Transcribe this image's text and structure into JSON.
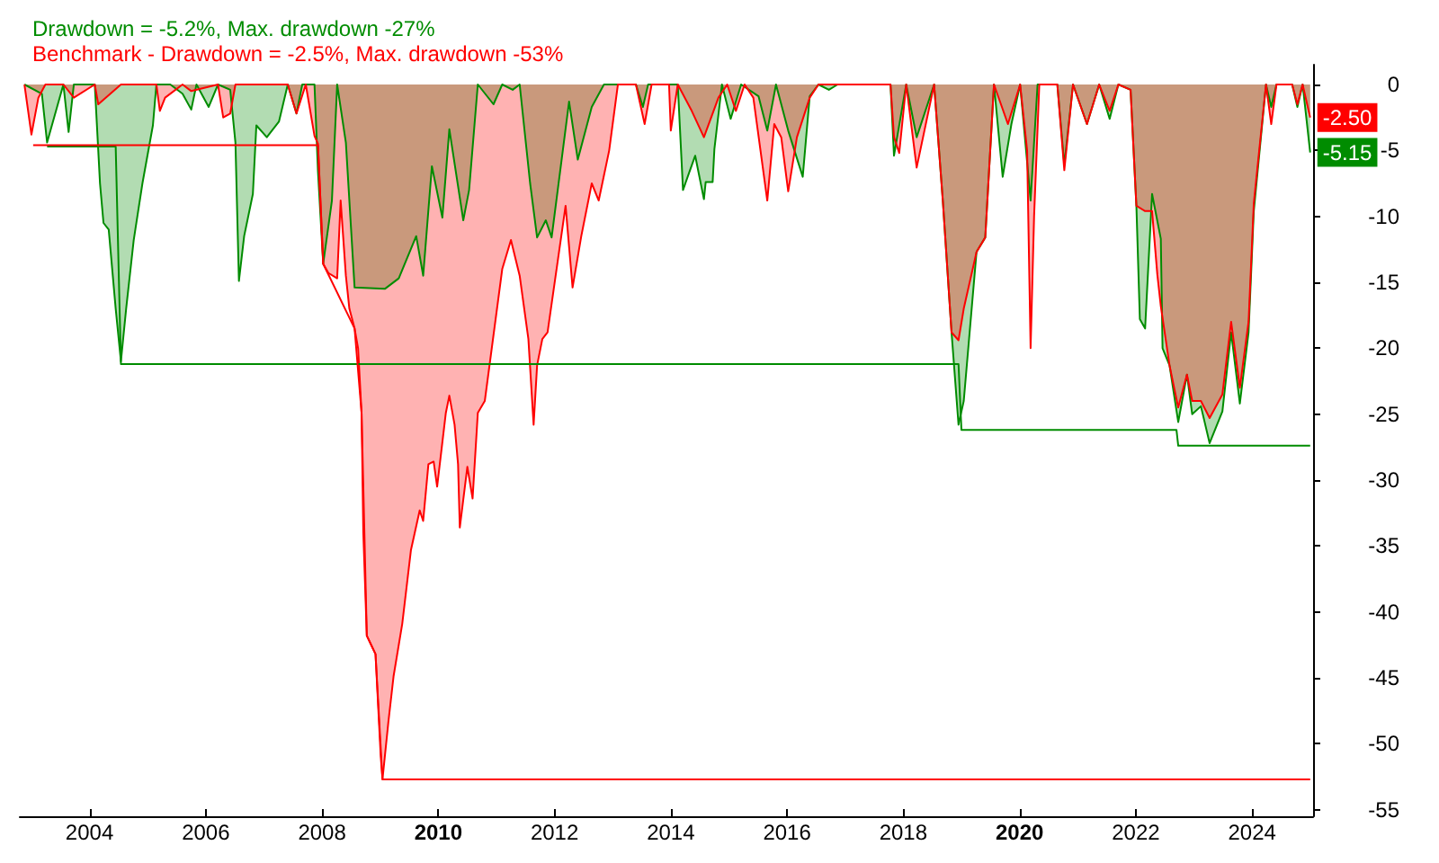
{
  "chart_data": {
    "type": "area",
    "legend": "top left",
    "grid": false,
    "marker": "none",
    "line_style": "solid",
    "xlim": [
      2002.8,
      2025.05
    ],
    "xticks": [
      2004,
      2006,
      2008,
      2010,
      2012,
      2014,
      2016,
      2018,
      2020,
      2022,
      2024
    ],
    "ylim": [
      -55.5,
      1.5
    ],
    "yticks": [
      0,
      -5,
      -10,
      -15,
      -20,
      -25,
      -30,
      -35,
      -40,
      -45,
      -50,
      -55
    ],
    "annotations": [
      {
        "text": "-2.50",
        "x": 2025.0,
        "y": -2.5
      },
      {
        "text": "-5.15",
        "x": 2025.0,
        "y": -5.15
      }
    ],
    "series": [
      {
        "name": "Drawdown = -5.2%, Max. drawdown -27%",
        "color": "#008c00",
        "x": [
          2002.88,
          2003.18,
          2003.27,
          2003.55,
          2003.64,
          2003.73,
          2004.09,
          2004.18,
          2004.24,
          2004.33,
          2004.45,
          2004.54,
          2004.63,
          2004.76,
          2004.91,
          2005.09,
          2005.15,
          2005.39,
          2005.6,
          2005.75,
          2005.84,
          2006.05,
          2006.21,
          2006.42,
          2006.51,
          2006.57,
          2006.66,
          2006.81,
          2006.87,
          2007.05,
          2007.26,
          2007.41,
          2007.56,
          2007.66,
          2007.87,
          2007.93,
          2008.02,
          2008.17,
          2008.26,
          2008.41,
          2008.56,
          2009.08,
          2009.32,
          2009.62,
          2009.74,
          2009.89,
          2010.07,
          2010.19,
          2010.43,
          2010.53,
          2010.68,
          2010.95,
          2011.1,
          2011.28,
          2011.4,
          2011.58,
          2011.7,
          2011.85,
          2011.95,
          2012.25,
          2012.4,
          2012.64,
          2012.85,
          2013.4,
          2013.52,
          2013.61,
          2014.12,
          2014.21,
          2014.42,
          2014.57,
          2014.6,
          2014.72,
          2014.75,
          2014.88,
          2015.03,
          2015.21,
          2015.51,
          2015.66,
          2015.81,
          2016.02,
          2016.27,
          2016.39,
          2016.54,
          2016.72,
          2016.87,
          2017.78,
          2017.84,
          2018.05,
          2018.23,
          2018.53,
          2018.68,
          2018.83,
          2018.95,
          2019.04,
          2019.26,
          2019.41,
          2019.56,
          2019.71,
          2019.86,
          2020.01,
          2020.19,
          2020.31,
          2020.65,
          2020.77,
          2020.92,
          2021.16,
          2021.37,
          2021.55,
          2021.7,
          2021.91,
          2022.01,
          2022.07,
          2022.16,
          2022.28,
          2022.43,
          2022.46,
          2022.58,
          2022.73,
          2022.88,
          2022.97,
          2023.12,
          2023.27,
          2023.49,
          2023.64,
          2023.79,
          2023.94,
          2024.03,
          2024.24,
          2024.33,
          2024.42,
          2024.69,
          2024.78,
          2024.87,
          2025.0
        ],
        "values": [
          0,
          -0.7,
          -4.4,
          0,
          -3.6,
          0,
          0,
          -7.5,
          -10.5,
          -11,
          -17,
          -21,
          -17,
          -11.8,
          -7.5,
          -3.1,
          0,
          0,
          -0.7,
          -1.9,
          0,
          -1.7,
          0,
          -0.4,
          -4.4,
          -14.9,
          -11.5,
          -8.3,
          -3.1,
          -4,
          -2.8,
          0,
          -2.2,
          0,
          0,
          -6.6,
          -13.6,
          -8.8,
          0,
          -4.4,
          -15.4,
          -15.5,
          -14.7,
          -11.5,
          -14.5,
          -6.2,
          -10.1,
          -3.4,
          -10.3,
          -8,
          0,
          -1.5,
          0,
          -0.4,
          0,
          -7.5,
          -11.6,
          -10.3,
          -11.6,
          -1.3,
          -5.7,
          -1.7,
          0,
          0,
          -1.7,
          0,
          0,
          -8,
          -5.4,
          -8.7,
          -7.4,
          -7.4,
          -4.9,
          0,
          -2.6,
          0,
          -0.9,
          -3.5,
          0,
          -3.5,
          -7,
          -0.9,
          0,
          -0.4,
          0,
          0,
          -5.4,
          0,
          -4,
          0,
          -8.8,
          -18.8,
          -25.8,
          -24,
          -12.7,
          -11.6,
          0,
          -7,
          -3,
          0,
          -8.8,
          0,
          0,
          -6.1,
          0,
          -3,
          0,
          -2.6,
          0,
          -0.4,
          -9.2,
          -17.8,
          -18.5,
          -8.3,
          -11.7,
          -20,
          -21.3,
          -25.6,
          -22,
          -25,
          -24.4,
          -27.2,
          -24.8,
          -18.8,
          -24.2,
          -18.8,
          -9.6,
          0,
          -1.7,
          0,
          0,
          -1.7,
          0,
          -5.15
        ]
      },
      {
        "name": "Benchmark - Drawdown = -2.5%, Max. drawdown -53%",
        "color": "#ff0000",
        "x": [
          2002.88,
          2003.0,
          2003.12,
          2003.24,
          2003.55,
          2003.73,
          2004.09,
          2004.15,
          2004.54,
          2005.15,
          2005.21,
          2005.3,
          2005.6,
          2005.75,
          2006.21,
          2006.3,
          2006.42,
          2006.51,
          2007.41,
          2007.56,
          2007.72,
          2007.87,
          2007.93,
          2008.02,
          2008.11,
          2008.26,
          2008.32,
          2008.41,
          2008.47,
          2008.56,
          2008.62,
          2008.68,
          2008.71,
          2008.77,
          2008.92,
          2009.01,
          2009.04,
          2009.14,
          2009.23,
          2009.38,
          2009.53,
          2009.68,
          2009.74,
          2009.83,
          2009.92,
          2009.98,
          2010.13,
          2010.19,
          2010.28,
          2010.34,
          2010.37,
          2010.5,
          2010.59,
          2010.68,
          2010.8,
          2011.1,
          2011.25,
          2011.4,
          2011.55,
          2011.64,
          2011.7,
          2011.79,
          2011.88,
          2012.19,
          2012.31,
          2012.46,
          2012.64,
          2012.76,
          2012.94,
          2013.09,
          2013.4,
          2013.55,
          2013.67,
          2013.97,
          2014.0,
          2014.12,
          2014.36,
          2014.57,
          2014.82,
          2014.97,
          2015.12,
          2015.27,
          2015.42,
          2015.66,
          2015.78,
          2015.9,
          2016.02,
          2016.17,
          2016.39,
          2016.54,
          2016.87,
          2017.78,
          2017.84,
          2017.93,
          2018.05,
          2018.23,
          2018.53,
          2018.68,
          2018.83,
          2018.95,
          2019.04,
          2019.26,
          2019.41,
          2019.56,
          2019.8,
          2020.01,
          2020.13,
          2020.19,
          2020.25,
          2020.34,
          2020.65,
          2020.77,
          2020.92,
          2021.16,
          2021.37,
          2021.55,
          2021.7,
          2021.91,
          2022.01,
          2022.16,
          2022.28,
          2022.37,
          2022.43,
          2022.58,
          2022.73,
          2022.88,
          2022.97,
          2023.12,
          2023.27,
          2023.49,
          2023.64,
          2023.79,
          2023.94,
          2024.03,
          2024.24,
          2024.33,
          2024.42,
          2024.69,
          2024.78,
          2024.87,
          2025.0
        ],
        "values": [
          0,
          -3.8,
          -1,
          0,
          0,
          -1,
          0,
          -1.5,
          0,
          0,
          -2,
          -1,
          0,
          -0.5,
          0,
          -2.5,
          -2.2,
          0,
          0,
          -2.2,
          0,
          -3.9,
          -4.5,
          -13.6,
          -14.3,
          -14.7,
          -8.8,
          -14.5,
          -17,
          -18.5,
          -20,
          -24.9,
          -34,
          -41.8,
          -43.2,
          -51,
          -52.7,
          -48.4,
          -44.9,
          -40.9,
          -35.3,
          -32.3,
          -33.1,
          -28.8,
          -28.6,
          -30.5,
          -24.9,
          -23.6,
          -25.8,
          -28.8,
          -33.6,
          -29,
          -31.4,
          -24.9,
          -24,
          -14,
          -11.8,
          -14.5,
          -19.3,
          -25.8,
          -21.3,
          -19.3,
          -18.8,
          -9.2,
          -15.4,
          -11.5,
          -7.5,
          -8.8,
          -5,
          0,
          0,
          -3,
          0,
          0,
          -3.5,
          0,
          -2,
          -4,
          -1,
          0,
          -2,
          0,
          -1,
          -8.8,
          -3,
          -4,
          -8.1,
          -4,
          -1,
          0,
          0,
          0,
          -4,
          -5.2,
          0,
          -6.3,
          0,
          -8.8,
          -18.8,
          -19.4,
          -17,
          -12.7,
          -11.6,
          0,
          -3,
          0,
          -5,
          -20,
          -10,
          0,
          0,
          -6.5,
          0,
          -3,
          0,
          -2,
          0,
          -0.4,
          -9.2,
          -9.6,
          -9.6,
          -14.4,
          -16.8,
          -21.3,
          -24.5,
          -22,
          -24,
          -24,
          -25.3,
          -23.5,
          -18,
          -23,
          -18,
          -9,
          0,
          -3,
          0,
          0,
          -1.5,
          0,
          -2.5
        ]
      },
      {
        "type": "line",
        "color": "#008c00",
        "x": [
          2003.27,
          2004.45,
          2004.54,
          2018.95,
          2019.0,
          2022.7,
          2022.73,
          2025.0
        ],
        "values": [
          -4.7,
          -4.7,
          -21.2,
          -21.2,
          -26.2,
          -26.2,
          -27.4,
          -27.4
        ]
      },
      {
        "type": "line",
        "color": "#ff0000",
        "x": [
          2003.03,
          2007.93,
          2008.02,
          2008.56,
          2008.68,
          2008.77,
          2008.92,
          2009.04,
          2025.0
        ],
        "values": [
          -4.6,
          -4.6,
          -13.6,
          -18.5,
          -24.9,
          -41.8,
          -43.2,
          -52.7,
          -52.7
        ]
      }
    ]
  }
}
